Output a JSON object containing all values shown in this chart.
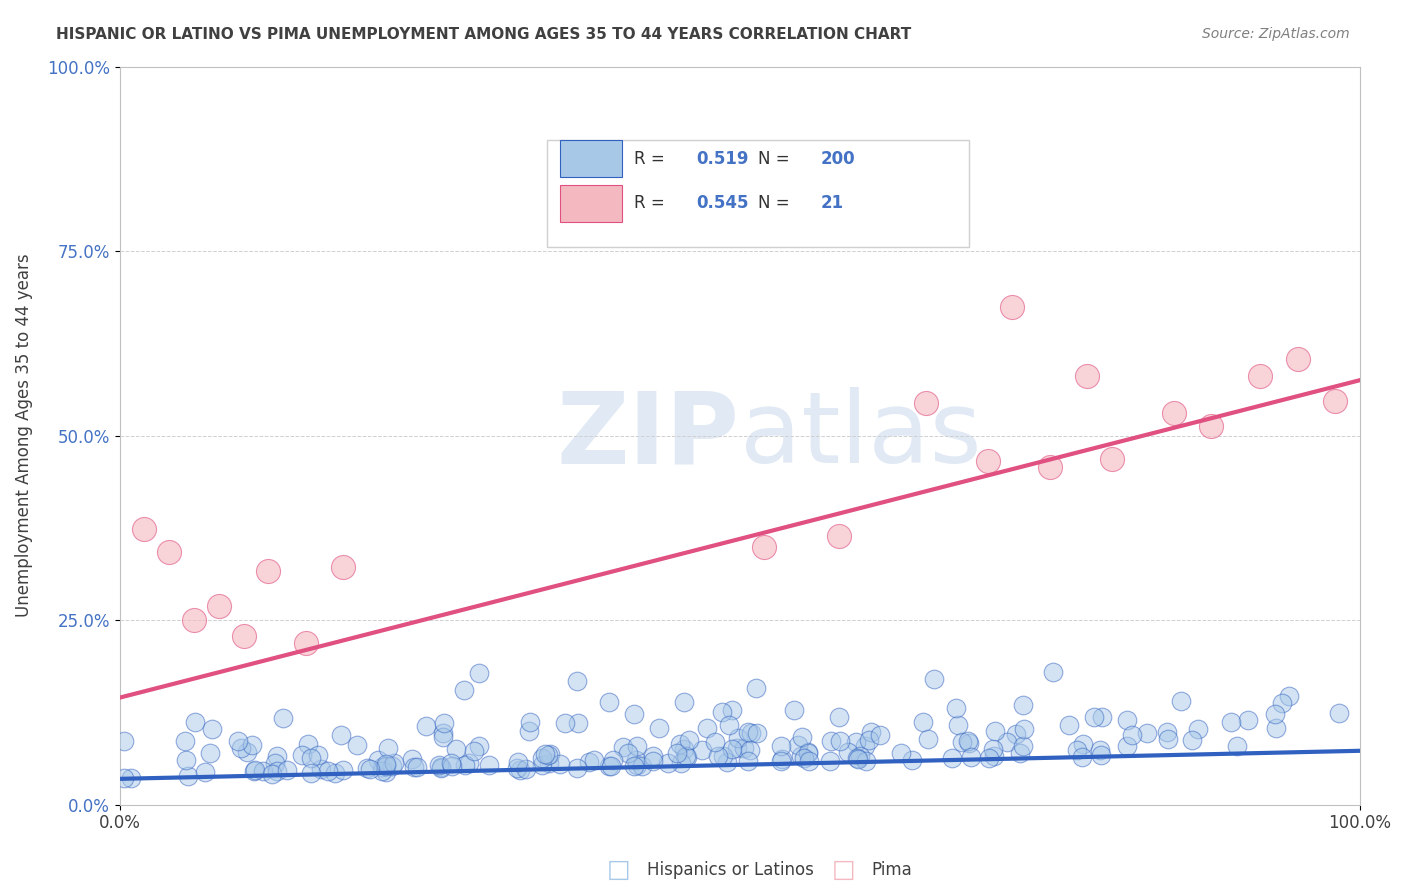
{
  "title": "HISPANIC OR LATINO VS PIMA UNEMPLOYMENT AMONG AGES 35 TO 44 YEARS CORRELATION CHART",
  "source": "Source: ZipAtlas.com",
  "xlabel": "",
  "ylabel": "Unemployment Among Ages 35 to 44 years",
  "xlim": [
    0,
    1
  ],
  "ylim": [
    0,
    1
  ],
  "xtick_labels": [
    "0.0%",
    "100.0%"
  ],
  "ytick_labels": [
    "0.0%",
    "25.0%",
    "50.0%",
    "75.0%",
    "100.0%"
  ],
  "ytick_values": [
    0,
    0.25,
    0.5,
    0.75,
    1.0
  ],
  "blue_R": 0.519,
  "blue_N": 200,
  "pink_R": 0.545,
  "pink_N": 21,
  "blue_color": "#a8c8e8",
  "blue_line_color": "#3060c0",
  "pink_color": "#f4b8c0",
  "pink_line_color": "#e05080",
  "legend_label_blue": "Hispanics or Latinos",
  "legend_label_pink": "Pima",
  "watermark": "ZIPatlas",
  "background_color": "#ffffff",
  "title_color": "#404040",
  "source_color": "#808080",
  "axis_label_color": "#404040",
  "tick_color": "#404040",
  "blue_line_intercept": 0.035,
  "blue_line_slope": 0.038,
  "pink_line_intercept": 0.145,
  "pink_line_slope": 0.43,
  "seed": 42
}
